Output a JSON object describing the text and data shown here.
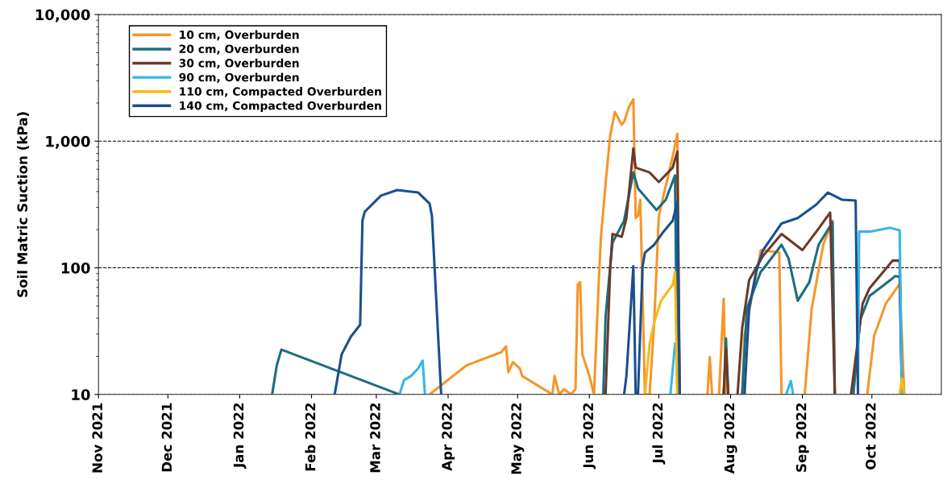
{
  "chart_data": {
    "type": "line",
    "ylabel": "Soil Matric Suction (kPa)",
    "log": "y",
    "grid": "y",
    "legend": "top left",
    "line_style": "solid",
    "marker": "none",
    "xlim": [
      "2021-11-01",
      "2022-10-31"
    ],
    "ylim": [
      10,
      10000
    ],
    "yticks": [
      {
        "value": 10,
        "label": "10"
      },
      {
        "value": 100,
        "label": "100"
      },
      {
        "value": 1000,
        "label": "1,000"
      },
      {
        "value": 10000,
        "label": "10,000"
      }
    ],
    "xticks": [
      {
        "value": "2021-11-01",
        "label": "Nov 2021"
      },
      {
        "value": "2021-12-01",
        "label": "Dec 2021"
      },
      {
        "value": "2022-01-01",
        "label": "Jan 2022"
      },
      {
        "value": "2022-02-01",
        "label": "Feb 2022"
      },
      {
        "value": "2022-03-01",
        "label": "Mar 2022"
      },
      {
        "value": "2022-04-01",
        "label": "Apr 2022"
      },
      {
        "value": "2022-05-01",
        "label": "May 2022"
      },
      {
        "value": "2022-06-01",
        "label": "Jun 2022"
      },
      {
        "value": "2022-07-01",
        "label": "Jul 2022"
      },
      {
        "value": "2022-08-01",
        "label": "Aug 2022"
      },
      {
        "value": "2022-09-01",
        "label": "Sep 2022"
      },
      {
        "value": "2022-10-01",
        "label": "Oct 2022"
      }
    ],
    "series": [
      {
        "name": "10 cm, Overburden",
        "color": "#f5962a",
        "x": [
          "2022-03-24",
          "2022-04-09",
          "2022-04-24",
          "2022-04-26",
          "2022-04-27",
          "2022-04-29",
          "2022-05-02",
          "2022-05-03",
          "2022-05-16",
          "2022-05-17",
          "2022-05-19",
          "2022-05-21",
          "2022-05-24",
          "2022-05-26",
          "2022-05-27",
          "2022-05-28",
          "2022-05-29",
          "2022-06-01",
          "2022-06-03",
          "2022-06-05",
          "2022-06-06",
          "2022-06-08",
          "2022-06-10",
          "2022-06-12",
          "2022-06-15",
          "2022-06-16",
          "2022-06-18",
          "2022-06-20",
          "2022-06-21",
          "2022-06-22",
          "2022-06-23",
          "2022-06-25",
          "2022-06-27",
          "2022-06-29",
          "2022-07-01",
          "2022-07-07",
          "2022-07-09",
          "2022-07-10",
          "2022-07-11",
          "2022-07-22",
          "2022-07-23",
          "2022-07-24",
          "2022-07-25",
          "2022-07-27",
          "2022-07-29",
          "2022-07-30",
          "2022-07-31",
          "2022-08-05",
          "2022-08-06",
          "2022-08-07",
          "2022-08-14",
          "2022-08-22",
          "2022-08-23",
          "2022-08-24",
          "2022-09-02",
          "2022-09-05",
          "2022-09-10",
          "2022-09-14",
          "2022-09-15",
          "2022-09-16",
          "2022-09-29",
          "2022-10-02",
          "2022-10-07",
          "2022-10-13",
          "2022-10-15"
        ],
        "values": [
          10,
          17,
          21.6,
          24,
          15,
          18,
          16,
          14,
          10,
          14,
          10,
          11,
          10,
          11,
          73.6,
          77,
          20.7,
          14,
          10,
          73.6,
          176,
          462,
          1106,
          1700,
          1350,
          1420,
          1845,
          2140,
          247,
          258,
          345,
          10,
          10,
          37,
          258,
          760,
          1140,
          10,
          null,
          10,
          19.8,
          10,
          null,
          10,
          57,
          10,
          null,
          null,
          10,
          29,
          138,
          132,
          10,
          null,
          10,
          47.5,
          152,
          236,
          10,
          null,
          10,
          29,
          52,
          74.6,
          10
        ]
      },
      {
        "name": "20 cm, Overburden",
        "color": "#1a6e80",
        "x": [
          "2022-01-15",
          "2022-01-17",
          "2022-01-19",
          "2022-03-11",
          "2022-03-12",
          "2022-06-07",
          "2022-06-08",
          "2022-06-10",
          "2022-06-11",
          "2022-06-16",
          "2022-06-20",
          "2022-06-22",
          "2022-06-30",
          "2022-07-04",
          "2022-07-08",
          "2022-07-09",
          "2022-07-10",
          "2022-07-29",
          "2022-07-30",
          "2022-07-31",
          "2022-08-01",
          "2022-08-06",
          "2022-08-08",
          "2022-08-14",
          "2022-08-16",
          "2022-08-23",
          "2022-08-26",
          "2022-08-30",
          "2022-09-04",
          "2022-09-08",
          "2022-09-14",
          "2022-09-15",
          "2022-09-16",
          "2022-09-23",
          "2022-09-26",
          "2022-09-30",
          "2022-10-09",
          "2022-10-11",
          "2022-10-13",
          "2022-10-14"
        ],
        "values": [
          10,
          17,
          22.6,
          10,
          null,
          10,
          41,
          103,
          158,
          236,
          566,
          424,
          286,
          345,
          536,
          10,
          null,
          10,
          27.7,
          10,
          null,
          10,
          47.5,
          93,
          103,
          152,
          119,
          55,
          77,
          152,
          229,
          10,
          null,
          10,
          39,
          60,
          80,
          86,
          85,
          10
        ]
      },
      {
        "name": "30 cm, Overburden",
        "color": "#6b3a2a",
        "x": [
          "2022-06-08",
          "2022-06-10",
          "2022-06-11",
          "2022-06-15",
          "2022-06-17",
          "2022-06-20",
          "2022-06-21",
          "2022-06-27",
          "2022-07-01",
          "2022-07-07",
          "2022-07-09",
          "2022-07-10",
          "2022-07-11",
          "2022-07-29",
          "2022-07-30",
          "2022-07-31",
          "2022-08-01",
          "2022-08-04",
          "2022-08-06",
          "2022-08-09",
          "2022-08-15",
          "2022-08-23",
          "2022-09-01",
          "2022-09-08",
          "2022-09-13",
          "2022-09-15",
          "2022-09-16",
          "2022-09-22",
          "2022-09-27",
          "2022-09-30",
          "2022-10-10",
          "2022-10-13",
          "2022-10-14"
        ],
        "values": [
          10,
          99,
          185,
          176,
          247,
          877,
          618,
          566,
          476,
          618,
          828,
          10,
          null,
          10,
          22.9,
          10,
          null,
          10,
          33.5,
          80,
          124,
          185,
          138,
          204,
          273,
          10,
          null,
          10,
          52,
          69,
          114,
          114,
          10
        ]
      },
      {
        "name": "90 cm, Overburden",
        "color": "#36b6e8",
        "x": [
          "2022-03-11",
          "2022-03-13",
          "2022-03-16",
          "2022-03-19",
          "2022-03-21",
          "2022-03-22",
          "2022-03-23",
          "2022-07-06",
          "2022-07-08",
          "2022-07-10",
          "2022-08-25",
          "2022-08-27",
          "2022-08-28",
          "2022-08-29",
          "2022-09-25",
          "2022-09-25T12:00",
          "2022-09-30",
          "2022-10-09",
          "2022-10-13",
          "2022-10-14"
        ],
        "values": [
          10,
          13,
          14,
          16,
          18.5,
          10,
          null,
          10,
          25,
          null,
          10,
          12.8,
          10,
          null,
          10,
          193,
          193,
          207,
          198,
          10
        ]
      },
      {
        "name": "110 cm, Compacted Overburden",
        "color": "#f6b915",
        "x": [
          "2022-06-25",
          "2022-06-27",
          "2022-06-29",
          "2022-07-02",
          "2022-07-07",
          "2022-07-08",
          "2022-07-09",
          "2022-07-10",
          "2022-10-13",
          "2022-10-14",
          "2022-10-15"
        ],
        "values": [
          10,
          25,
          37,
          55,
          73.6,
          93,
          10,
          null,
          10,
          13.4,
          10
        ]
      },
      {
        "name": "140 cm, Compacted Overburden",
        "color": "#1b4f8f",
        "x": [
          "2022-02-11",
          "2022-02-14",
          "2022-02-18",
          "2022-02-22",
          "2022-02-23",
          "2022-02-24",
          "2022-03-03",
          "2022-03-10",
          "2022-03-19",
          "2022-03-24",
          "2022-03-25",
          "2022-03-29",
          "2022-03-30",
          "2022-06-16",
          "2022-06-17",
          "2022-06-20",
          "2022-06-21",
          "2022-06-22",
          "2022-06-24",
          "2022-06-25",
          "2022-06-29",
          "2022-07-03",
          "2022-07-07",
          "2022-07-09",
          "2022-07-10",
          "2022-07-11",
          "2022-08-07",
          "2022-08-09",
          "2022-08-12",
          "2022-08-15",
          "2022-08-23",
          "2022-08-30",
          "2022-09-07",
          "2022-09-12",
          "2022-09-18",
          "2022-09-24",
          "2022-09-25"
        ],
        "values": [
          10,
          20.7,
          28.6,
          35.5,
          236,
          277,
          372,
          411,
          394,
          321,
          258,
          10,
          null,
          10,
          14,
          103,
          10,
          10,
          103,
          132,
          152,
          193,
          236,
          331,
          10,
          null,
          10,
          47.5,
          93,
          138,
          224,
          247,
          316,
          393,
          345,
          340,
          10
        ]
      }
    ]
  }
}
